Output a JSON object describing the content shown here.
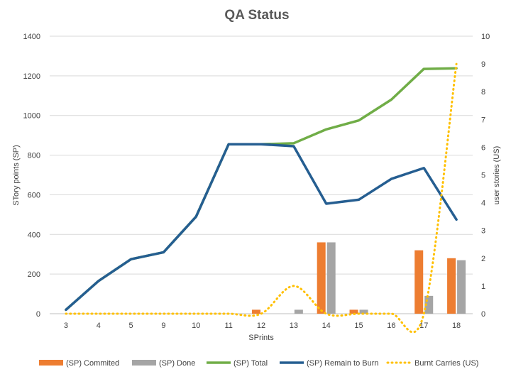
{
  "chart_data": {
    "type": "bar",
    "title": "QA Status",
    "xlabel": "SPrints",
    "ylabel": "STory points (SP)",
    "y2label": "user stories (US)",
    "ylim": [
      0,
      1400
    ],
    "y2lim": [
      0,
      10
    ],
    "yticks": [
      0,
      200,
      400,
      600,
      800,
      1000,
      1200,
      1400
    ],
    "y2ticks": [
      0,
      1,
      2,
      3,
      4,
      5,
      6,
      7,
      8,
      9,
      10
    ],
    "categories": [
      "3",
      "4",
      "5",
      "9",
      "10",
      "11",
      "12",
      "13",
      "14",
      "15",
      "16",
      "17",
      "18"
    ],
    "grid": true,
    "legend_position": "bottom",
    "series": [
      {
        "name": "(SP) Commited",
        "kind": "bar",
        "axis": "left",
        "color": "#ED7D31",
        "values": [
          0,
          0,
          0,
          0,
          0,
          0,
          20,
          0,
          360,
          20,
          0,
          320,
          280
        ]
      },
      {
        "name": "(SP) Done",
        "kind": "bar",
        "axis": "left",
        "color": "#A5A5A5",
        "values": [
          0,
          0,
          0,
          0,
          0,
          0,
          0,
          20,
          360,
          20,
          0,
          90,
          270
        ]
      },
      {
        "name": "(SP) Total",
        "kind": "line",
        "axis": "left",
        "color": "#70AD47",
        "values": [
          20,
          165,
          275,
          310,
          490,
          855,
          855,
          860,
          930,
          975,
          1080,
          1235,
          1238
        ]
      },
      {
        "name": "(SP) Remain to Burn",
        "kind": "line",
        "axis": "left",
        "color": "#255E91",
        "values": [
          20,
          165,
          275,
          310,
          490,
          855,
          855,
          845,
          555,
          575,
          680,
          735,
          475
        ]
      },
      {
        "name": "Burnt Carries (US)",
        "kind": "dotted",
        "axis": "right",
        "color": "#FFC000",
        "values": [
          0,
          0,
          0,
          0,
          0,
          0,
          0,
          1,
          0,
          0,
          0,
          0,
          9
        ]
      }
    ]
  }
}
